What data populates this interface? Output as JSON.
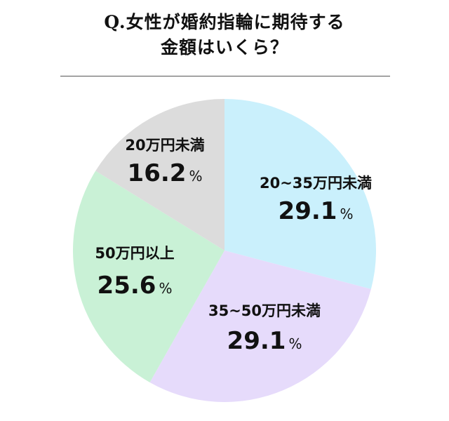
{
  "title": {
    "line1": "Q.女性が婚約指輪に期待する",
    "line2": "金額はいくら？"
  },
  "chart_data": {
    "type": "pie",
    "start_angle_deg": 0,
    "direction": "clockwise",
    "slices": [
      {
        "label": "20~35万円未満",
        "value": 29.1,
        "value_text": "29.1",
        "unit": "%",
        "color": "#caf0fc"
      },
      {
        "label": "35~50万円未満",
        "value": 29.1,
        "value_text": "29.1",
        "unit": "%",
        "color": "#e6dbfb"
      },
      {
        "label": "50万円以上",
        "value": 25.6,
        "value_text": "25.6",
        "unit": "%",
        "color": "#c9f1d6"
      },
      {
        "label": "20万円未満",
        "value": 16.2,
        "value_text": "16.2",
        "unit": "%",
        "color": "#dcdcdc"
      }
    ]
  }
}
